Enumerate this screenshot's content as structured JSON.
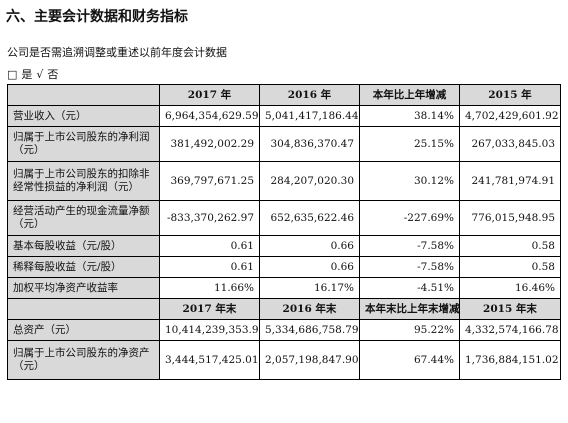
{
  "heading": "六、主要会计数据和财务指标",
  "subtitle": "公司是否需追溯调整或重述以前年度会计数据",
  "options": {
    "box": "□",
    "yes": "是",
    "check": "√",
    "no": "否"
  },
  "table1": {
    "headers": [
      "",
      "2017 年",
      "2016 年",
      "本年比上年增减",
      "2015 年"
    ],
    "rows": [
      {
        "label": "营业收入（元）",
        "values": [
          "6,964,354,629.59",
          "5,041,417,186.44",
          "38.14%",
          "4,702,429,601.92"
        ]
      },
      {
        "label": "归属于上市公司股东的净利润（元）",
        "values": [
          "381,492,002.29",
          "304,836,370.47",
          "25.15%",
          "267,033,845.03"
        ]
      },
      {
        "label": "归属于上市公司股东的扣除非经常性损益的净利润（元）",
        "values": [
          "369,797,671.25",
          "284,207,020.30",
          "30.12%",
          "241,781,974.91"
        ]
      },
      {
        "label": "经营活动产生的现金流量净额（元）",
        "values": [
          "-833,370,262.97",
          "652,635,622.46",
          "-227.69%",
          "776,015,948.95"
        ]
      },
      {
        "label": "基本每股收益（元/股）",
        "values": [
          "0.61",
          "0.66",
          "-7.58%",
          "0.58"
        ]
      },
      {
        "label": "稀释每股收益（元/股）",
        "values": [
          "0.61",
          "0.66",
          "-7.58%",
          "0.58"
        ]
      },
      {
        "label": "加权平均净资产收益率",
        "values": [
          "11.66%",
          "16.17%",
          "-4.51%",
          "16.46%"
        ]
      }
    ]
  },
  "table2": {
    "headers": [
      "",
      "2017 年末",
      "2016 年末",
      "本年末比上年末增减",
      "2015 年末"
    ],
    "rows": [
      {
        "label": "总资产（元）",
        "values": [
          "10,414,239,353.91",
          "5,334,686,758.79",
          "95.22%",
          "4,332,574,166.78"
        ]
      },
      {
        "label": "归属于上市公司股东的净资产（元）",
        "values": [
          "3,444,517,425.01",
          "2,057,198,847.90",
          "67.44%",
          "1,736,884,151.02"
        ]
      }
    ]
  }
}
